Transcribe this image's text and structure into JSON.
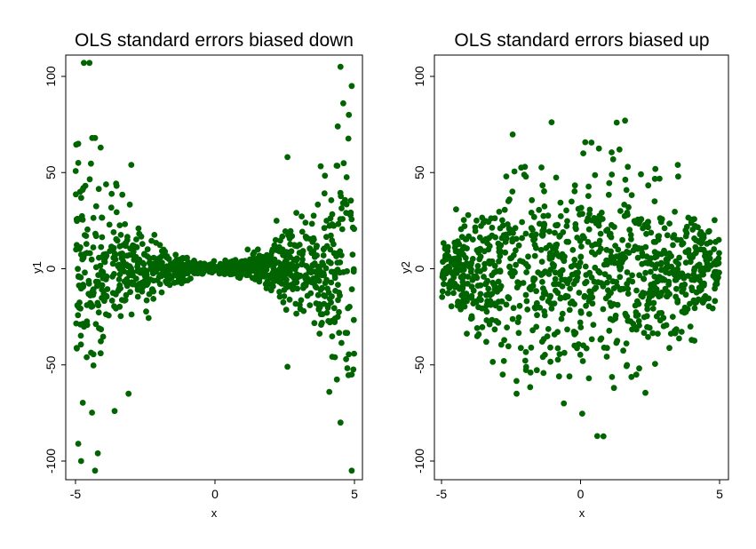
{
  "colors": {
    "marker": "#006400",
    "background": "#ffffff",
    "axis": "#000000"
  },
  "chart_data": [
    {
      "type": "scatter",
      "title": "OLS standard errors biased down",
      "xlabel": "x",
      "ylabel": "y1",
      "xlim": [
        -5.2,
        5.2
      ],
      "ylim": [
        -110,
        112
      ],
      "xticks": [
        -5,
        0,
        5
      ],
      "yticks": [
        -100,
        -50,
        0,
        50,
        100
      ],
      "pattern": "heteroskedastic variance increasing with |x| (bowtie)",
      "highlight_points": [
        [
          -4.7,
          107
        ],
        [
          -4.5,
          107
        ],
        [
          -4.4,
          68
        ],
        [
          -4.3,
          68
        ],
        [
          -4.1,
          63
        ],
        [
          -3.0,
          54
        ],
        [
          -4.9,
          65
        ],
        [
          -4.9,
          55
        ],
        [
          -4.6,
          -46
        ],
        [
          -4.3,
          -105
        ],
        [
          -4.8,
          -100
        ],
        [
          -4.2,
          -96
        ],
        [
          -3.6,
          -74
        ],
        [
          -3.1,
          -65
        ],
        [
          -4.9,
          -91
        ],
        [
          4.5,
          105
        ],
        [
          4.9,
          95
        ],
        [
          4.6,
          86
        ],
        [
          4.8,
          80
        ],
        [
          4.4,
          74
        ],
        [
          2.6,
          58
        ],
        [
          4.9,
          -105
        ],
        [
          4.5,
          -80
        ],
        [
          4.9,
          -55
        ],
        [
          2.6,
          -51
        ],
        [
          4.7,
          -47
        ],
        [
          4.1,
          -64
        ],
        [
          4.3,
          -46
        ],
        [
          4.4,
          -25
        ]
      ]
    },
    {
      "type": "scatter",
      "title": "OLS standard errors biased up",
      "xlabel": "x",
      "ylabel": "y2",
      "xlim": [
        -5.2,
        5.2
      ],
      "ylim": [
        -110,
        112
      ],
      "xticks": [
        -5,
        0,
        5
      ],
      "yticks": [
        -100,
        -50,
        0,
        50,
        100
      ],
      "pattern": "variance largest near x = 0, small at the extremes",
      "highlight_points": [
        [
          0.1,
          60
        ],
        [
          1.3,
          76
        ],
        [
          1.6,
          77
        ],
        [
          1.4,
          62
        ],
        [
          3.5,
          54
        ],
        [
          -2.0,
          53
        ],
        [
          1.7,
          53
        ],
        [
          -2.3,
          -65
        ],
        [
          0.6,
          -87
        ],
        [
          -0.6,
          -70
        ],
        [
          0.3,
          -57
        ],
        [
          1.2,
          -62
        ],
        [
          -0.4,
          -56
        ],
        [
          -1.8,
          -54
        ],
        [
          -2.8,
          -55
        ]
      ]
    }
  ]
}
